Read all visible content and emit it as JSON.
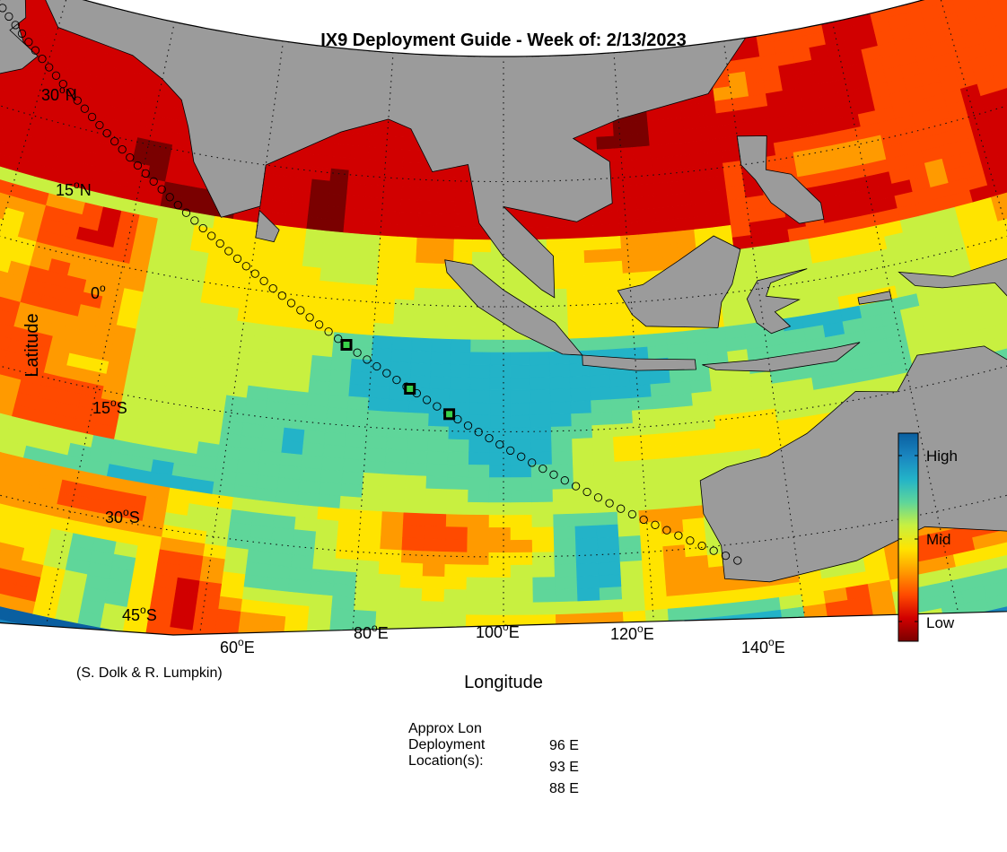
{
  "title": "IX9 Deployment Guide - Week of: 2/13/2023",
  "xlabel": "Longitude",
  "ylabel": "Latitude",
  "credit": "(S. Dolk & R. Lumpkin)",
  "lat_ticks": [
    {
      "deg": "30",
      "hemi": "N"
    },
    {
      "deg": "15",
      "hemi": "N"
    },
    {
      "deg": "0",
      "hemi": ""
    },
    {
      "deg": "15",
      "hemi": "S"
    },
    {
      "deg": "30",
      "hemi": "S"
    },
    {
      "deg": "45",
      "hemi": "S"
    }
  ],
  "lon_ticks": [
    {
      "deg": "60",
      "hemi": "E"
    },
    {
      "deg": "80",
      "hemi": "E"
    },
    {
      "deg": "100",
      "hemi": "E"
    },
    {
      "deg": "120",
      "hemi": "E"
    },
    {
      "deg": "140",
      "hemi": "E"
    }
  ],
  "colorbar": {
    "labels": [
      "High",
      "Mid",
      "Low"
    ],
    "colors": [
      "#7a0000",
      "#d10000",
      "#ff4a00",
      "#ff9a00",
      "#ffe400",
      "#c8f040",
      "#5fd69a",
      "#23b3c8",
      "#1a86c0",
      "#0a5fa0"
    ]
  },
  "land_color": "#9b9b9b",
  "deployment": {
    "header": "Approx Lon\nDeployment\nLocation(s):",
    "header_lines": [
      "Approx Lon",
      "Deployment",
      "Location(s):"
    ],
    "locations": [
      "96 E",
      "93 E",
      "88 E"
    ]
  },
  "track": {
    "start": {
      "lon": 116,
      "lat": -32
    },
    "end": {
      "lon": 54,
      "lat": 27
    },
    "markers_lon": [
      96,
      93,
      88
    ]
  }
}
